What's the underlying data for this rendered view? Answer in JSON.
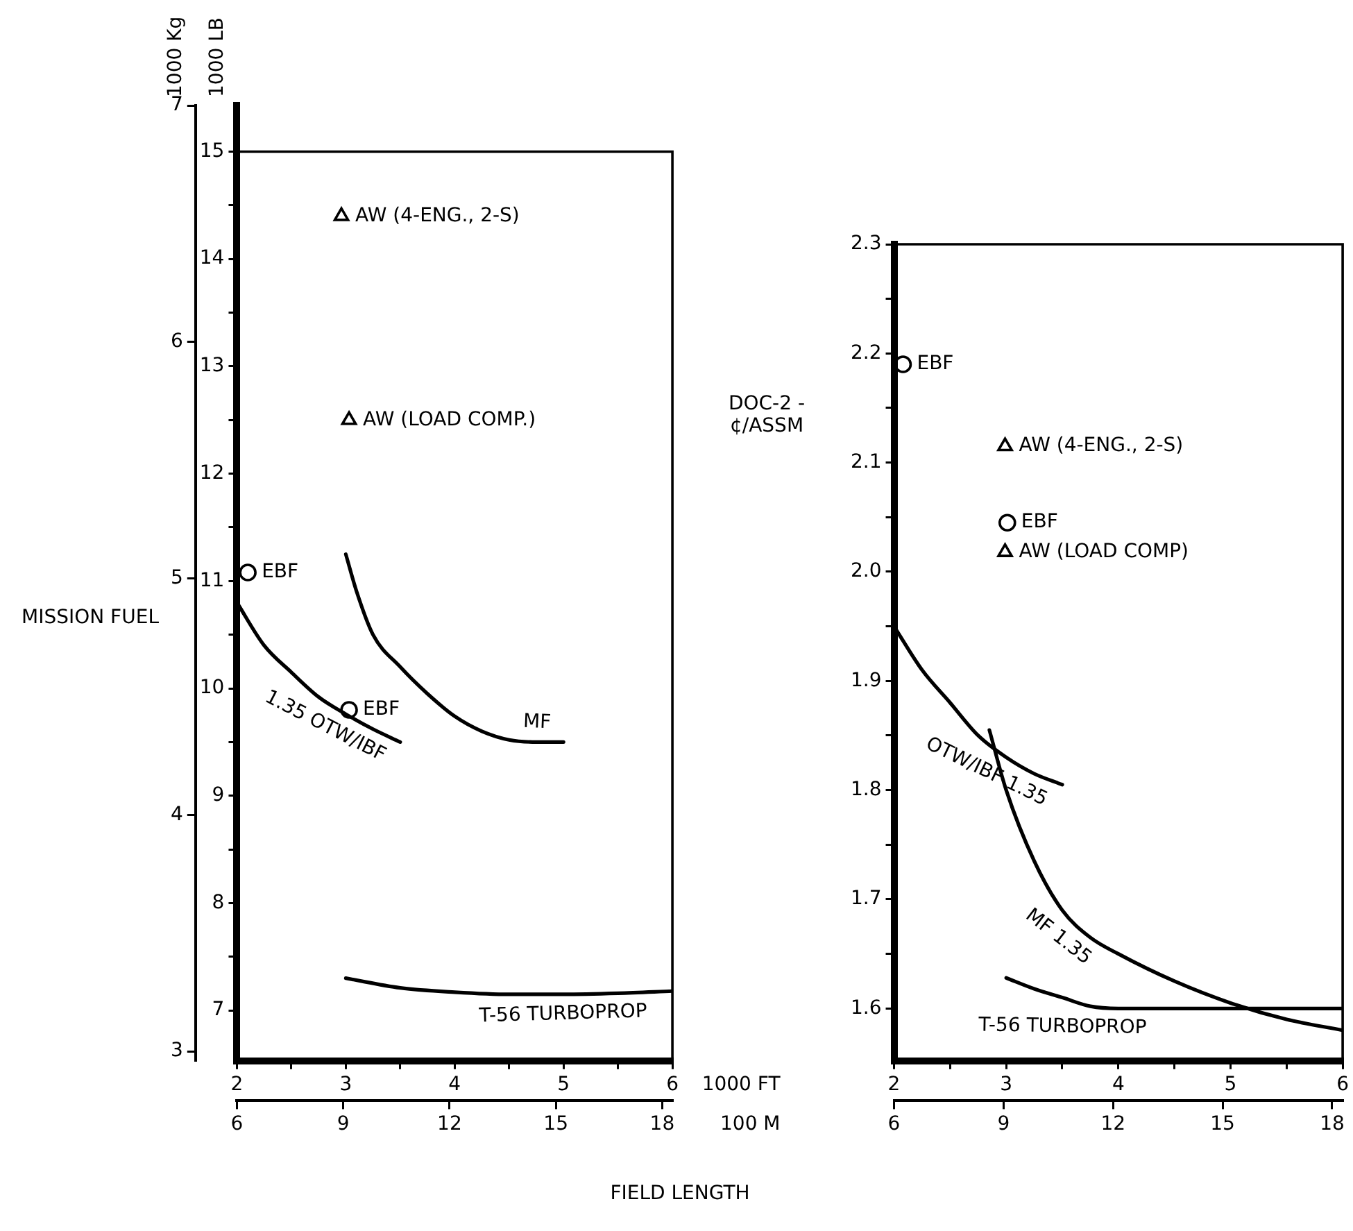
{
  "chart_data": [
    {
      "type": "line",
      "ylabel": "1000 LB",
      "y2label": "1000 Kg",
      "annotations": [
        "MISSION FUEL"
      ],
      "marker": "none",
      "xlim": [
        2,
        6
      ],
      "xticks": [
        2,
        {
          "value": 2.5,
          "label": null
        },
        3,
        {
          "value": 3.5,
          "label": null
        },
        4,
        {
          "value": 4.5,
          "label": null
        },
        5,
        {
          "value": 5.5,
          "label": null
        },
        6
      ],
      "x2lim": [
        6,
        18.288
      ],
      "x2ticks": [
        6,
        9,
        12,
        15,
        18
      ],
      "ylim": [
        6.53,
        15.43
      ],
      "yticks": [
        7,
        {
          "value": 7.5,
          "label": null
        },
        8,
        {
          "value": 8.5,
          "label": null
        },
        9,
        {
          "value": 9.5,
          "label": null
        },
        10,
        {
          "value": 10.5,
          "label": null
        },
        11,
        {
          "value": 11.5,
          "label": null
        },
        12,
        {
          "value": 12.5,
          "label": null
        },
        13,
        {
          "value": 13.5,
          "label": null
        },
        14,
        {
          "value": 14.5,
          "label": null
        },
        15
      ],
      "y2lim": [
        2.96,
        7.0
      ],
      "y2ticks": [
        3,
        4,
        5,
        6,
        7
      ],
      "series": [
        {
          "name": "1.35 OTW/IBF",
          "color": "#000000",
          "x": [
            2.0,
            2.25,
            2.5,
            2.75,
            3.0,
            3.25,
            3.5
          ],
          "values": [
            10.8,
            10.4,
            10.15,
            9.92,
            9.76,
            9.62,
            9.5
          ]
        },
        {
          "name": "MF",
          "color": "#000000",
          "x": [
            3.0,
            3.1,
            3.25,
            3.5,
            3.75,
            4.0,
            4.25,
            4.5,
            4.75,
            5.0
          ],
          "values": [
            11.25,
            10.9,
            10.5,
            10.2,
            9.95,
            9.74,
            9.6,
            9.52,
            9.5,
            9.5
          ]
        },
        {
          "name": "T-56 TURBOPROP",
          "color": "#000000",
          "x": [
            3.0,
            3.5,
            4.0,
            4.5,
            5.0,
            5.5,
            6.0
          ],
          "values": [
            7.3,
            7.21,
            7.17,
            7.15,
            7.15,
            7.16,
            7.18
          ]
        },
        {
          "name": "EBF",
          "type": "scatter",
          "marker": "circle",
          "color": "#000000",
          "x": [
            2.1,
            3.03
          ],
          "values": [
            11.08,
            9.8
          ]
        },
        {
          "name": "AW (4-ENG., 2-S)",
          "type": "scatter",
          "marker": "triangle",
          "color": "#000000",
          "x": [
            2.96
          ],
          "values": [
            14.4
          ]
        },
        {
          "name": "AW (LOAD COMP.)",
          "type": "scatter",
          "marker": "triangle",
          "color": "#000000",
          "x": [
            3.03
          ],
          "values": [
            12.5
          ]
        }
      ]
    },
    {
      "type": "line",
      "ylabel": "DOC-2 - ¢/ASSM",
      "xlabel": "1000 FT",
      "x2label": "100 M",
      "annotations": [
        "FIELD LENGTH"
      ],
      "marker": "none",
      "xlim": [
        2,
        6
      ],
      "xticks": [
        2,
        {
          "value": 2.5,
          "label": null
        },
        3,
        {
          "value": 3.5,
          "label": null
        },
        4,
        {
          "value": 4.5,
          "label": null
        },
        5,
        {
          "value": 5.5,
          "label": null
        },
        6
      ],
      "x2lim": [
        6,
        18.288
      ],
      "x2ticks": [
        6,
        9,
        12,
        15,
        18
      ],
      "ylim": [
        1.552,
        2.3
      ],
      "yticks": [
        1.6,
        {
          "value": 1.65,
          "label": null
        },
        1.7,
        {
          "value": 1.75,
          "label": null
        },
        1.8,
        {
          "value": 1.85,
          "label": null
        },
        1.9,
        {
          "value": 1.95,
          "label": null
        },
        {
          "value": 2.0,
          "label": "2.0"
        },
        {
          "value": 2.05,
          "label": null
        },
        2.1,
        {
          "value": 2.15,
          "label": null
        },
        2.2,
        {
          "value": 2.25,
          "label": null
        },
        2.3
      ],
      "series": [
        {
          "name": "OTW/IBF 1.35",
          "color": "#000000",
          "x": [
            2.0,
            2.25,
            2.5,
            2.75,
            3.0,
            3.25,
            3.5
          ],
          "values": [
            1.95,
            1.91,
            1.88,
            1.85,
            1.83,
            1.815,
            1.805
          ]
        },
        {
          "name": "MF 1.35",
          "color": "#000000",
          "x": [
            2.85,
            3.0,
            3.25,
            3.5,
            3.75,
            4.0,
            4.5,
            5.0,
            5.5,
            6.0
          ],
          "values": [
            1.855,
            1.8,
            1.735,
            1.69,
            1.665,
            1.65,
            1.625,
            1.605,
            1.59,
            1.58
          ]
        },
        {
          "name": "T-56 TURBOPROP",
          "color": "#000000",
          "x": [
            3.0,
            3.25,
            3.5,
            3.75,
            4.0,
            5.0,
            6.0
          ],
          "values": [
            1.628,
            1.618,
            1.61,
            1.602,
            1.6,
            1.6,
            1.6
          ]
        },
        {
          "name": "EBF",
          "type": "scatter",
          "marker": "circle",
          "color": "#000000",
          "x": [
            2.08,
            3.01
          ],
          "values": [
            2.19,
            2.045
          ]
        },
        {
          "name": "AW (4-ENG., 2-S)",
          "type": "scatter",
          "marker": "triangle",
          "color": "#000000",
          "x": [
            2.99
          ],
          "values": [
            2.115
          ]
        },
        {
          "name": "AW (LOAD COMP)",
          "type": "scatter",
          "marker": "triangle",
          "color": "#000000",
          "x": [
            2.99
          ],
          "values": [
            2.018
          ]
        }
      ]
    }
  ]
}
